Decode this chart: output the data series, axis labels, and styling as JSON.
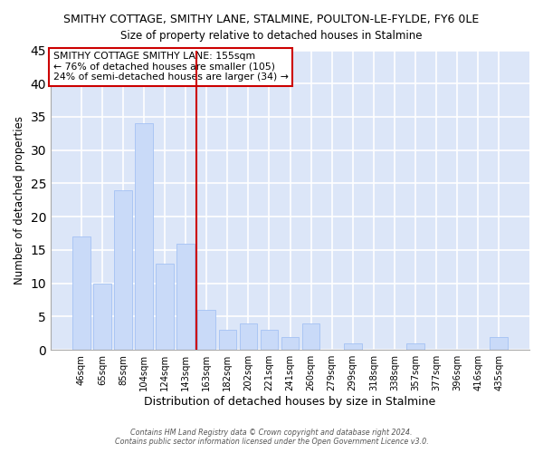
{
  "title": "SMITHY COTTAGE, SMITHY LANE, STALMINE, POULTON-LE-FYLDE, FY6 0LE",
  "subtitle": "Size of property relative to detached houses in Stalmine",
  "xlabel": "Distribution of detached houses by size in Stalmine",
  "ylabel": "Number of detached properties",
  "bar_labels": [
    "46sqm",
    "65sqm",
    "85sqm",
    "104sqm",
    "124sqm",
    "143sqm",
    "163sqm",
    "182sqm",
    "202sqm",
    "221sqm",
    "241sqm",
    "260sqm",
    "279sqm",
    "299sqm",
    "318sqm",
    "338sqm",
    "357sqm",
    "377sqm",
    "396sqm",
    "416sqm",
    "435sqm"
  ],
  "bar_values": [
    17,
    10,
    24,
    34,
    13,
    16,
    6,
    3,
    4,
    3,
    2,
    4,
    0,
    1,
    0,
    0,
    1,
    0,
    0,
    0,
    2
  ],
  "bar_color": "#c9daf8",
  "bar_edge_color": "#a4c2f4",
  "vline_x": 5.5,
  "vline_color": "#cc0000",
  "ylim": [
    0,
    45
  ],
  "yticks": [
    0,
    5,
    10,
    15,
    20,
    25,
    30,
    35,
    40,
    45
  ],
  "annotation_title": "SMITHY COTTAGE SMITHY LANE: 155sqm",
  "annotation_line1": "← 76% of detached houses are smaller (105)",
  "annotation_line2": "24% of semi-detached houses are larger (34) →",
  "annotation_box_color": "#ffffff",
  "annotation_box_edge": "#cc0000",
  "footer1": "Contains HM Land Registry data © Crown copyright and database right 2024.",
  "footer2": "Contains public sector information licensed under the Open Government Licence v3.0.",
  "fig_background_color": "#ffffff",
  "plot_background": "#dce6f8",
  "grid_color": "#ffffff",
  "title_fontsize": 9,
  "subtitle_fontsize": 9
}
